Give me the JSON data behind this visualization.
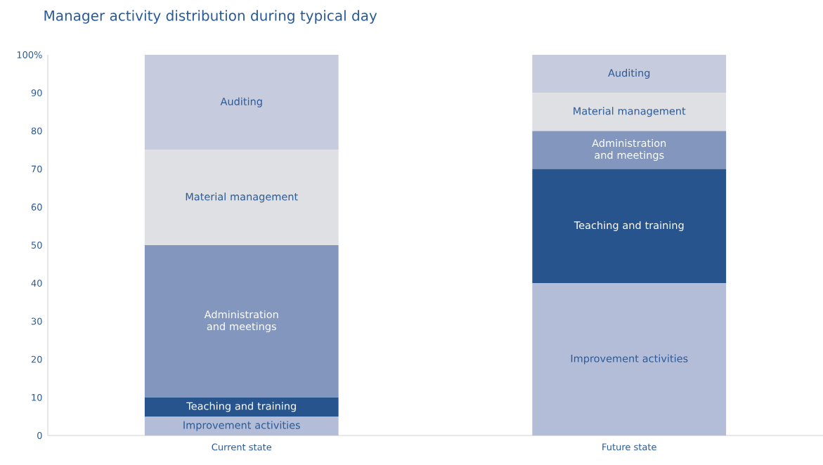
{
  "chart_data": {
    "type": "bar",
    "stacked": true,
    "title": "Manager activity distribution during typical day",
    "categories": [
      "Current state",
      "Future state"
    ],
    "series": [
      {
        "name": "Improvement activities",
        "color": "#b4bdd7",
        "values": [
          5,
          40
        ]
      },
      {
        "name": "Teaching and training",
        "color": "#27548c",
        "values": [
          5,
          30
        ]
      },
      {
        "name": "Administration and meetings",
        "color": "#8396bd",
        "values": [
          40,
          10
        ]
      },
      {
        "name": "Material management",
        "color": "#dfe0e3",
        "values": [
          25,
          10
        ]
      },
      {
        "name": "Auditing",
        "color": "#c6cbde",
        "values": [
          25,
          10
        ]
      }
    ],
    "ylim": [
      0,
      100
    ],
    "yticks": [
      0,
      10,
      20,
      30,
      40,
      50,
      60,
      70,
      80,
      90,
      {
        "value": 100,
        "label": "100%"
      }
    ],
    "grid": false
  }
}
